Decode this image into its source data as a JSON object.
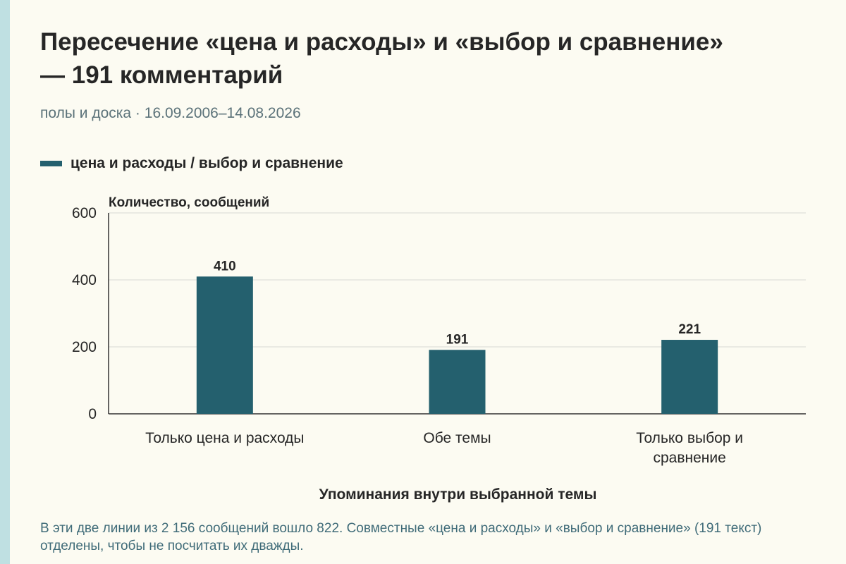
{
  "header": {
    "title": "Пересечение «цена и расходы» и «выбор и сравнение» — 191 комментарий",
    "subtitle": "полы и доска · 16.09.2006–14.08.2026"
  },
  "legend": {
    "label": "цена и расходы / выбор и сравнение"
  },
  "footnote": "В эти две линии из 2 156 сообщений вошло 822. Совместные «цена и расходы» и «выбор и сравнение» (191 текст) отделены, чтобы не посчитать их дважды.",
  "colors": {
    "bar": "#24606e",
    "background": "#fcfbf2",
    "subtitle_text": "#5b7279",
    "footnote_text": "#3f6b78",
    "left_stripe": "#bfe0e2",
    "gridline": "#d9d9d4",
    "axis": "#333333"
  },
  "chart_data": {
    "type": "bar",
    "categories": [
      [
        "Только цена и расходы"
      ],
      [
        "Обе темы"
      ],
      [
        "Только выбор и",
        "сравнение"
      ]
    ],
    "series": [
      {
        "name": "цена и расходы / выбор и сравнение",
        "values": [
          410,
          191,
          221
        ]
      }
    ],
    "ylabel": "Количество, сообщений",
    "xlabel": "Упоминания внутри выбранной темы",
    "ylim": [
      0,
      600
    ],
    "yticks": [
      0,
      200,
      400,
      600
    ],
    "grid": true,
    "legend_position": "top-left"
  }
}
